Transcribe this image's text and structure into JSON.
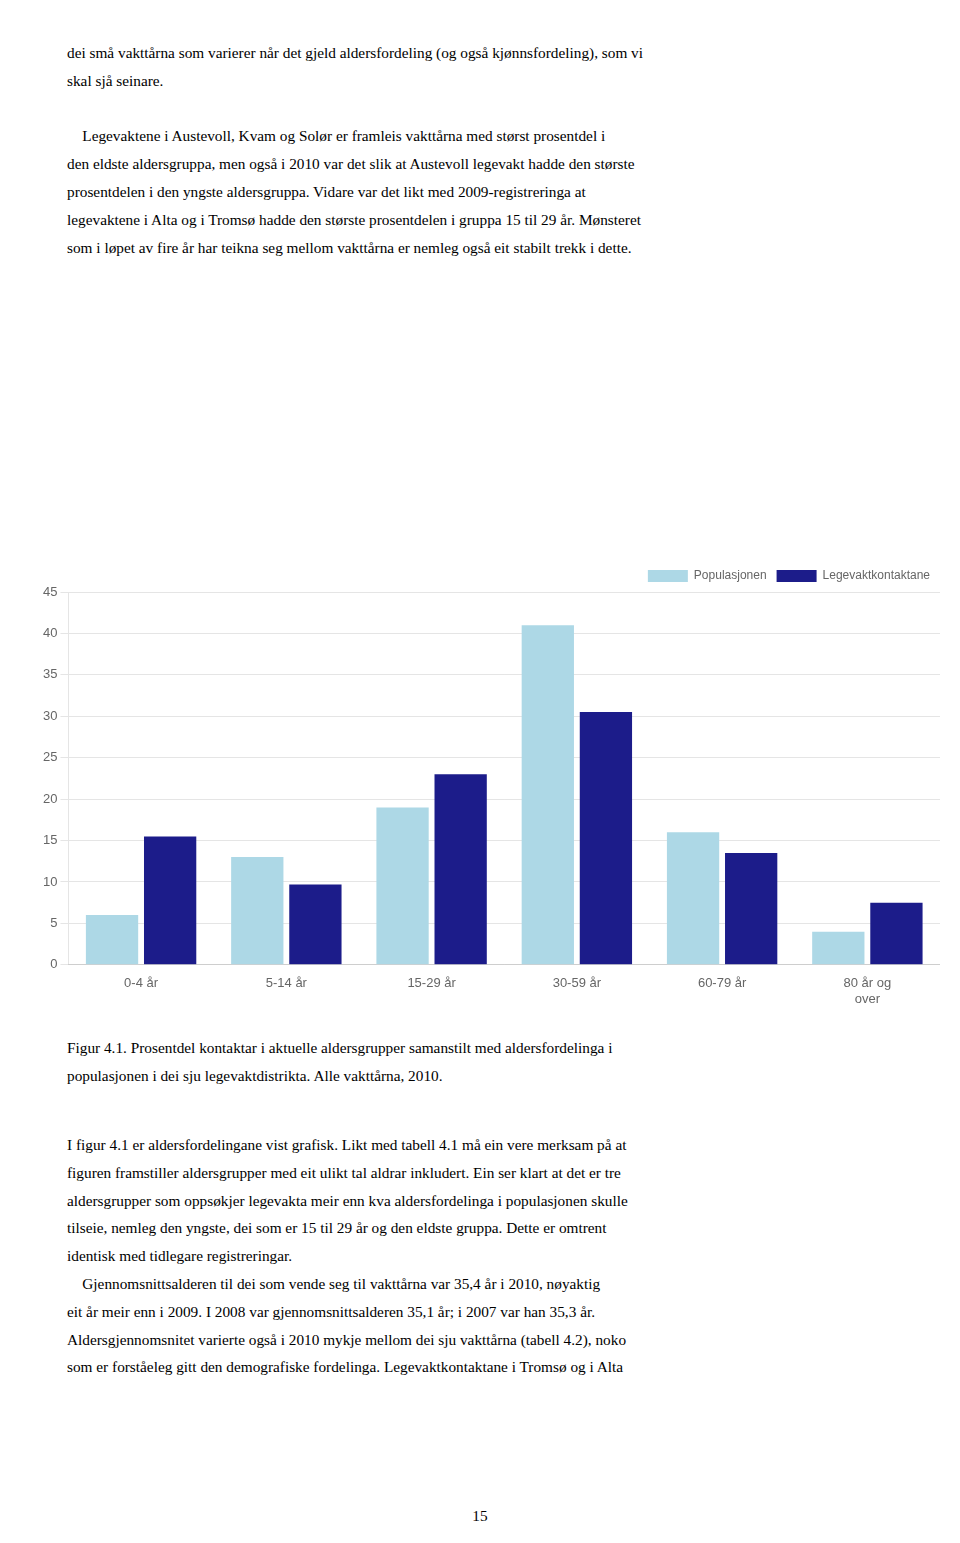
{
  "chart_data": {
    "type": "bar",
    "categories": [
      "0-4 år",
      "5-14 år",
      "15-29 år",
      "30-59 år",
      "60-79 år",
      "80 år og\nover"
    ],
    "series": [
      {
        "name": "Populasjonen",
        "color": "#add8e6",
        "values": [
          6,
          13,
          19,
          41,
          16,
          4
        ]
      },
      {
        "name": "Legevaktkontaktane",
        "color": "#1c1c8a",
        "values": [
          15.5,
          9.7,
          23,
          30.5,
          13.5,
          7.5
        ]
      }
    ],
    "ylim": [
      0,
      45
    ],
    "yticks": [
      0,
      5,
      10,
      15,
      20,
      25,
      30,
      35,
      40,
      45
    ],
    "grid": true,
    "legend": "upper right",
    "text_above": [
      "dei små vakttårna som varierer når det gjeld aldersfordeling (og også kjønnsfordeling), som vi",
      "skal sjå seinare.",
      "    Legevaktene i Austevoll, Kvam og Solør er framleis vakttårna med størst prosentdel i",
      "den eldste aldersgruppa, men også i 2010 var det slik at Austevoll legevakt hadde den største",
      "prosentdelen i den yngste aldersgruppa. Vidare var det likt med 2009-registreringa at",
      "legevaktene i Alta og i Tromsø hadde den største prosentdelen i gruppa 15 til 29 år. Mønsteret",
      "som i løpet av fire år har teikna seg mellom vakttårna er nemleg også eit stabilt trekk i dette."
    ],
    "caption": "Figur 4.1. Prosentdel kontaktar i aktuelle aldersgrupper samanstilt med aldersfordelinga i\npopulasjonen i dei sju legevaktdistrikta. Alle vakttårna, 2010.",
    "text_below": [
      "I figur 4.1 er aldersfordelingane vist grafisk. Likt med tabell 4.1 må ein vere merksam på at",
      "figuren framstiller aldersgrupper med eit ulikt tal aldrar inkludert. Ein ser klart at det er tre",
      "aldersgrupper som oppsøkjer legevakta meir enn kva aldersfordelinga i populasjonen skulle",
      "tilseie, nemleg den yngste, dei som er 15 til 29 år og den eldste gruppa. Dette er omtrent",
      "identisk med tidlegare registreringar.",
      "    Gjennomsnittsalderen til dei som vende seg til vakttårna var 35,4 år i 2010, nøyaktig",
      "eit år meir enn i 2009. I 2008 var gjennomsnittsalderen 35,1 år; i 2007 var han 35,3 år.",
      "Aldersgjennomsnitet varierte også i 2010 mykje mellom dei sju vakttårna (tabell 4.2), noko",
      "som er forståeleg gitt den demografiske fordelinga. Legevaktkontaktane i Tromsø og i Alta"
    ],
    "page_number": "15"
  }
}
